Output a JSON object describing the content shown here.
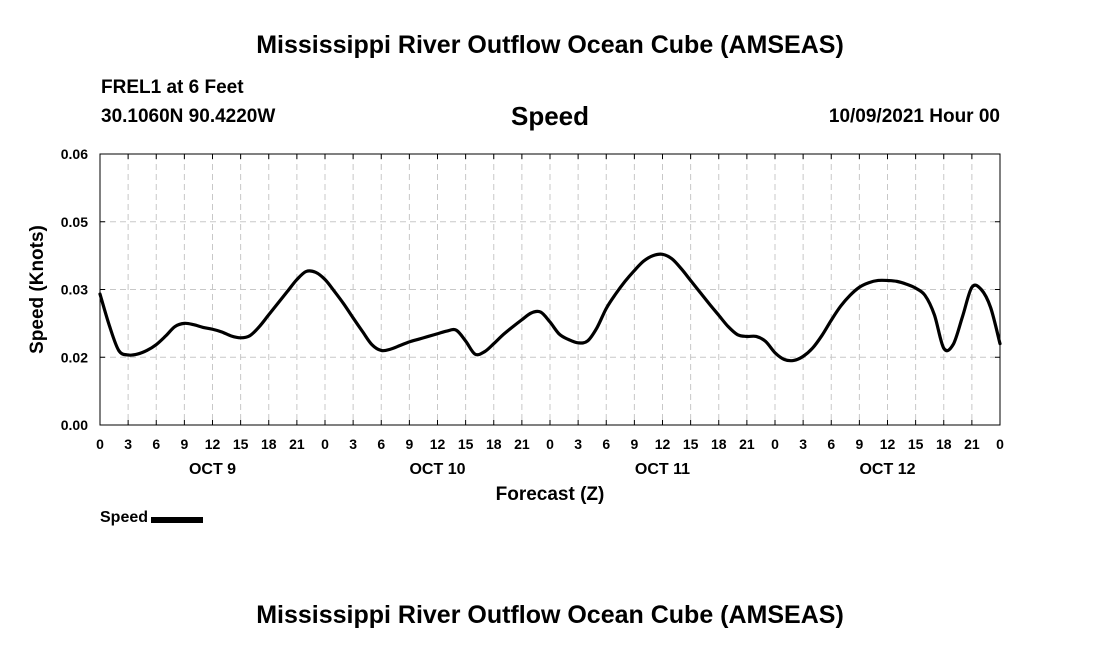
{
  "header": {
    "title": "Mississippi River Outflow Ocean Cube (AMSEAS)",
    "station": "FREL1 at 6 Feet",
    "location": "30.1060N  90.4220W",
    "datetime": "10/09/2021 Hour 00"
  },
  "footer": {
    "title": "Mississippi River Outflow Ocean Cube (AMSEAS)"
  },
  "legend": {
    "label": "Speed"
  },
  "chart_data": {
    "type": "line",
    "title": "Speed",
    "xlabel": "Forecast (Z)",
    "ylabel": "Speed (Knots)",
    "ylim": [
      0,
      0.06
    ],
    "xlim": [
      0,
      96
    ],
    "yticks": [
      "0.00",
      "0.02",
      "0.03",
      "0.05",
      "0.06"
    ],
    "xtick_labels": [
      "0",
      "3",
      "6",
      "9",
      "12",
      "15",
      "18",
      "21",
      "0",
      "3",
      "6",
      "9",
      "12",
      "15",
      "18",
      "21",
      "0",
      "3",
      "6",
      "9",
      "12",
      "15",
      "18",
      "21",
      "0",
      "3",
      "6",
      "9",
      "12",
      "15",
      "18",
      "21",
      "0"
    ],
    "day_labels": [
      "OCT 9",
      "OCT 10",
      "OCT 11",
      "OCT 12"
    ],
    "grid": true,
    "legend_position": "bottom-left",
    "line_color": "#000000",
    "series": [
      {
        "name": "Speed",
        "x": [
          0,
          1,
          2,
          3,
          4,
          5,
          6,
          7,
          8,
          9,
          10,
          11,
          12,
          13,
          14,
          15,
          16,
          17,
          18,
          19,
          20,
          21,
          22,
          23,
          24,
          25,
          26,
          27,
          28,
          29,
          30,
          31,
          32,
          33,
          34,
          35,
          36,
          37,
          38,
          39,
          40,
          41,
          42,
          43,
          44,
          45,
          46,
          47,
          48,
          49,
          50,
          51,
          52,
          53,
          54,
          55,
          56,
          57,
          58,
          59,
          60,
          61,
          62,
          63,
          64,
          65,
          66,
          67,
          68,
          69,
          70,
          71,
          72,
          73,
          74,
          75,
          76,
          77,
          78,
          79,
          80,
          81,
          82,
          83,
          84,
          85,
          86,
          87,
          88,
          89,
          90,
          91,
          92,
          93,
          94,
          95,
          96
        ],
        "values": [
          0.029,
          0.022,
          0.0165,
          0.0155,
          0.0157,
          0.0165,
          0.0178,
          0.0197,
          0.0218,
          0.0225,
          0.0222,
          0.0216,
          0.0212,
          0.0206,
          0.0197,
          0.0193,
          0.0198,
          0.0218,
          0.0244,
          0.027,
          0.0296,
          0.0322,
          0.034,
          0.0338,
          0.0322,
          0.0296,
          0.0268,
          0.0237,
          0.0207,
          0.0178,
          0.0165,
          0.0168,
          0.0176,
          0.0184,
          0.019,
          0.0196,
          0.0202,
          0.0208,
          0.021,
          0.0186,
          0.0157,
          0.0162,
          0.018,
          0.02,
          0.0217,
          0.0233,
          0.0248,
          0.025,
          0.0228,
          0.0201,
          0.0189,
          0.0182,
          0.0186,
          0.0215,
          0.0258,
          0.029,
          0.0318,
          0.0342,
          0.0363,
          0.0375,
          0.0378,
          0.0368,
          0.0346,
          0.032,
          0.0294,
          0.0268,
          0.0243,
          0.0218,
          0.02,
          0.0196,
          0.0196,
          0.0185,
          0.016,
          0.0145,
          0.0143,
          0.0152,
          0.017,
          0.0198,
          0.0232,
          0.0263,
          0.0287,
          0.0305,
          0.0315,
          0.032,
          0.032,
          0.0318,
          0.0312,
          0.0303,
          0.0287,
          0.0244,
          0.017,
          0.0178,
          0.024,
          0.0305,
          0.03,
          0.026,
          0.018
        ]
      }
    ]
  }
}
